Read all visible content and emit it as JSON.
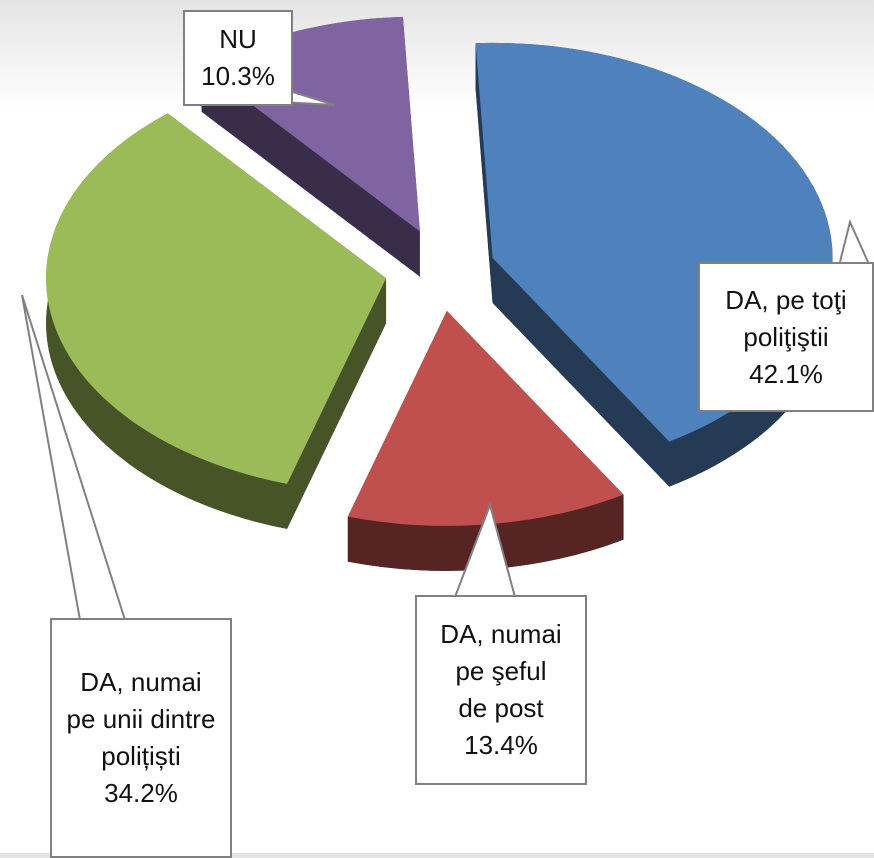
{
  "chart_data": {
    "type": "pie",
    "categories": [
      "DA, pe toţi poliţiştii",
      "DA, numai pe şeful de post",
      "DA, numai pe unii dintre polițiști",
      "NU"
    ],
    "values": [
      42.1,
      13.4,
      34.2,
      10.3
    ],
    "value_labels": [
      "42.1%",
      "13.4%",
      "34.2%",
      "10.3%"
    ],
    "colors": [
      "#4f81bd",
      "#c0504d",
      "#9bbb59",
      "#8064a2"
    ]
  }
}
